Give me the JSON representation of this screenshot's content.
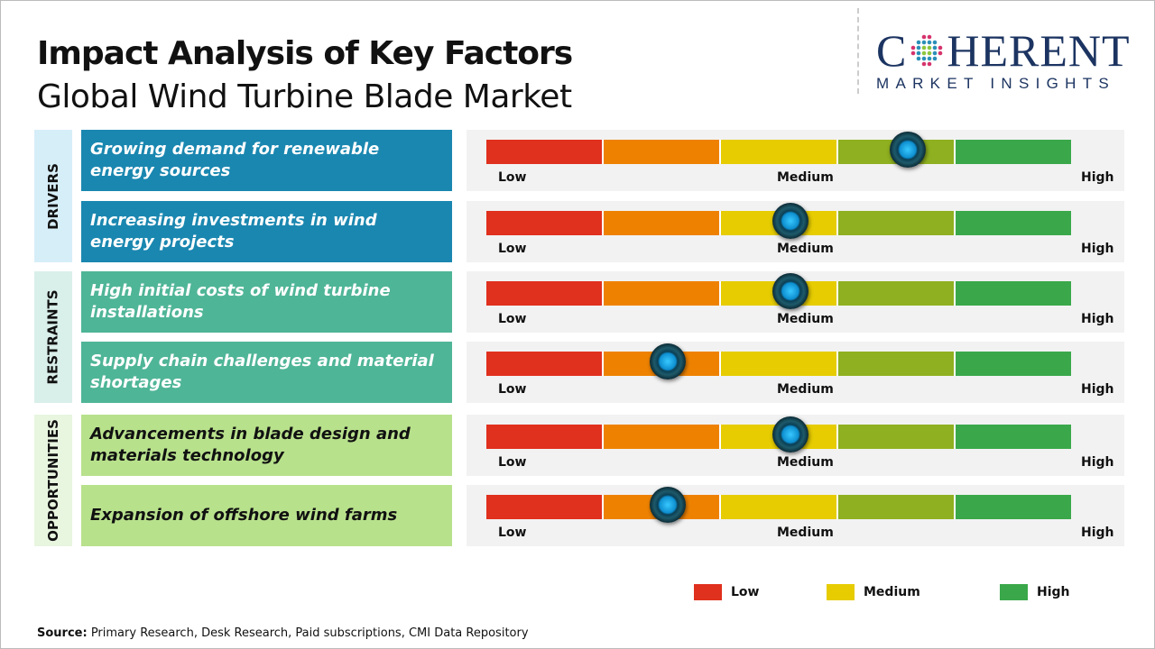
{
  "header": {
    "title": "Impact Analysis of Key Factors",
    "subtitle": "Global Wind Turbine Blade Market"
  },
  "logo": {
    "main_left": "C",
    "main_right": "HERENT",
    "sub": "MARKET INSIGHTS"
  },
  "scale": {
    "low": "Low",
    "medium": "Medium",
    "high": "High",
    "segment_colors": [
      "#e0301e",
      "#ee8200",
      "#e6cc00",
      "#8fb020",
      "#3aa84a"
    ]
  },
  "chart_data": {
    "type": "table",
    "value_scale": "0 = Low, 0.5 = Medium, 1 = High",
    "groups": [
      {
        "name": "DRIVERS",
        "label_bg": "#d6eef8",
        "item_bg": "#1a87b0",
        "text_color": "#ffffff",
        "items": [
          {
            "label": "Growing demand for renewable energy sources",
            "impact": 0.72
          },
          {
            "label": "Increasing investments in wind energy projects",
            "impact": 0.52
          }
        ]
      },
      {
        "name": "RESTRAINTS",
        "label_bg": "#d9efea",
        "item_bg": "#4fb597",
        "text_color": "#ffffff",
        "items": [
          {
            "label": "High initial costs of wind turbine installations",
            "impact": 0.52
          },
          {
            "label": "Supply chain challenges and material shortages",
            "impact": 0.31
          }
        ]
      },
      {
        "name": "OPPORTUNITIES",
        "label_bg": "#e8f5df",
        "item_bg": "#b8e18c",
        "text_color": "#111111",
        "items": [
          {
            "label": "Advancements in blade design and materials technology",
            "impact": 0.52
          },
          {
            "label": "Expansion of offshore wind farms",
            "impact": 0.31
          }
        ]
      }
    ]
  },
  "legend": [
    {
      "label": "Low",
      "color": "#e0301e"
    },
    {
      "label": "Medium",
      "color": "#e6cc00"
    },
    {
      "label": "High",
      "color": "#3aa84a"
    }
  ],
  "footer": {
    "source_label": "Source:",
    "source_text": " Primary Research, Desk Research, Paid subscriptions, CMI Data Repository"
  }
}
